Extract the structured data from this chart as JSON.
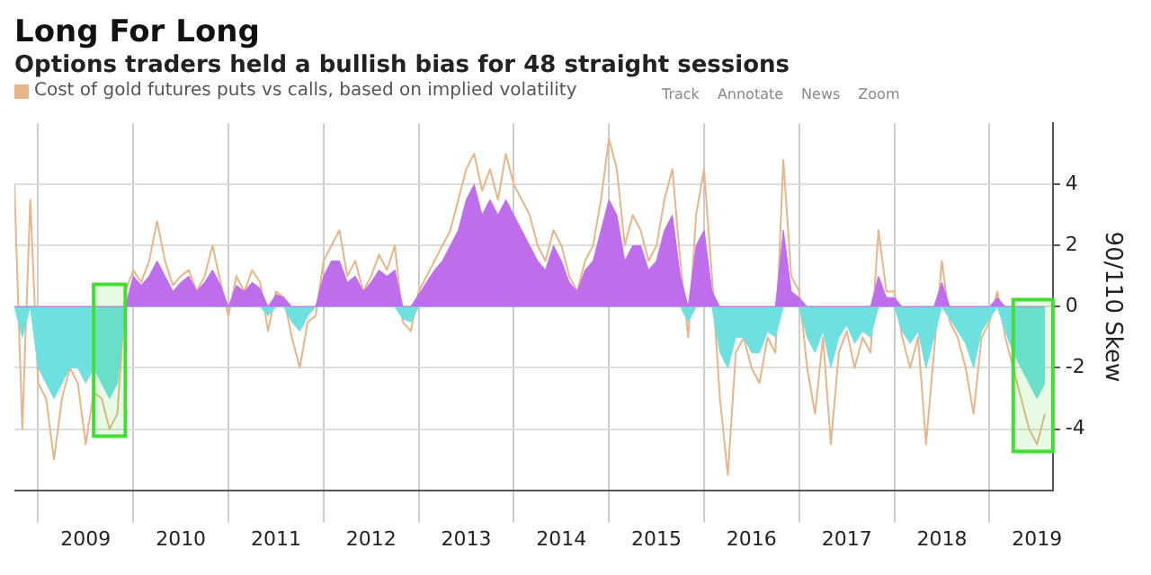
{
  "chart_data": {
    "type": "line",
    "title": "Long For Long",
    "subtitle": "Options traders held a bullish bias for 48 straight sessions",
    "ylabel": "90/110 Skew",
    "annotations": [
      "Track",
      "Annotate",
      "News",
      "Zoom"
    ],
    "x": [
      "2008-10",
      "2008-11",
      "2008-12",
      "2009-01",
      "2009-02",
      "2009-03",
      "2009-04",
      "2009-05",
      "2009-06",
      "2009-07",
      "2009-08",
      "2009-09",
      "2009-10",
      "2009-11",
      "2009-12",
      "2010-01",
      "2010-02",
      "2010-03",
      "2010-04",
      "2010-05",
      "2010-06",
      "2010-07",
      "2010-08",
      "2010-09",
      "2010-10",
      "2010-11",
      "2010-12",
      "2011-01",
      "2011-02",
      "2011-03",
      "2011-04",
      "2011-05",
      "2011-06",
      "2011-07",
      "2011-08",
      "2011-09",
      "2011-10",
      "2011-11",
      "2011-12",
      "2012-01",
      "2012-02",
      "2012-03",
      "2012-04",
      "2012-05",
      "2012-06",
      "2012-07",
      "2012-08",
      "2012-09",
      "2012-10",
      "2012-11",
      "2012-12",
      "2013-01",
      "2013-02",
      "2013-03",
      "2013-04",
      "2013-05",
      "2013-06",
      "2013-07",
      "2013-08",
      "2013-09",
      "2013-10",
      "2013-11",
      "2013-12",
      "2014-01",
      "2014-02",
      "2014-03",
      "2014-04",
      "2014-05",
      "2014-06",
      "2014-07",
      "2014-08",
      "2014-09",
      "2014-10",
      "2014-11",
      "2014-12",
      "2015-01",
      "2015-02",
      "2015-03",
      "2015-04",
      "2015-05",
      "2015-06",
      "2015-07",
      "2015-08",
      "2015-09",
      "2015-10",
      "2015-11",
      "2015-12",
      "2016-01",
      "2016-02",
      "2016-03",
      "2016-04",
      "2016-05",
      "2016-06",
      "2016-07",
      "2016-08",
      "2016-09",
      "2016-10",
      "2016-11",
      "2016-12",
      "2017-01",
      "2017-02",
      "2017-03",
      "2017-04",
      "2017-05",
      "2017-06",
      "2017-07",
      "2017-08",
      "2017-09",
      "2017-10",
      "2017-11",
      "2017-12",
      "2018-01",
      "2018-02",
      "2018-03",
      "2018-04",
      "2018-05",
      "2018-06",
      "2018-07",
      "2018-08",
      "2018-09",
      "2018-10",
      "2018-11",
      "2018-12",
      "2019-01",
      "2019-02",
      "2019-03",
      "2019-04",
      "2019-05",
      "2019-06",
      "2019-07",
      "2019-08"
    ],
    "series": [
      {
        "name": "Cost of gold futures puts vs calls, based on implied volatility",
        "color": "#e8b48a",
        "values": [
          4,
          -4,
          3.5,
          -2.5,
          -3,
          -5,
          -3,
          -2,
          -2.5,
          -4.5,
          -2.8,
          -3,
          -4,
          -3.5,
          0.5,
          1.2,
          0.8,
          1.5,
          2.8,
          1.5,
          0.7,
          1,
          1.2,
          0.5,
          1,
          2,
          0.8,
          -0.3,
          1,
          0.5,
          1.2,
          0.8,
          -0.8,
          0.5,
          0.3,
          -1,
          -2,
          -0.5,
          -0.3,
          1.5,
          2,
          2.5,
          1,
          1.5,
          0.5,
          1,
          1.7,
          1.2,
          2,
          -0.5,
          -0.8,
          0.5,
          1,
          1.5,
          2,
          2.5,
          3.5,
          4.5,
          5,
          3.8,
          4.5,
          3.5,
          5,
          4,
          3.5,
          3,
          2,
          1.5,
          2.5,
          2,
          1,
          0.5,
          1.5,
          2,
          3.5,
          5.5,
          4.5,
          2,
          3,
          2.5,
          1.5,
          2,
          3.5,
          4.5,
          1.5,
          -1,
          3,
          4.5,
          1,
          -3,
          -5.5,
          -1.5,
          -1,
          -2,
          -2.5,
          -1,
          -1.5,
          4.8,
          1,
          0.5,
          -2,
          -3.5,
          -1,
          -4.5,
          -1.5,
          -0.8,
          -2,
          -1,
          -1.5,
          2.5,
          0.5,
          0.5,
          -1,
          -2,
          -1,
          -4.5,
          -1.5,
          1.5,
          -0.5,
          -1,
          -2,
          -3.5,
          -1,
          -0.5,
          0.5,
          -1,
          -2,
          -3,
          -4,
          -4.5,
          -3.5
        ]
      },
      {
        "type": "area",
        "color": "#be6eeb",
        "values": [
          0,
          0,
          0,
          0,
          0,
          0,
          0,
          0,
          0,
          0,
          0,
          0,
          0,
          0,
          0,
          1,
          0.7,
          1,
          1.5,
          1,
          0.5,
          0.8,
          1,
          0.5,
          0.8,
          1.2,
          0.7,
          0,
          0.7,
          0.5,
          0.8,
          0.6,
          0,
          0.4,
          0.3,
          0,
          0,
          0,
          0,
          1,
          1.5,
          1.5,
          0.8,
          1,
          0.5,
          0.8,
          1.2,
          1,
          1.2,
          0,
          0,
          0.4,
          0.8,
          1.2,
          1.5,
          2,
          2.5,
          3.5,
          4,
          3,
          3.5,
          3,
          3.5,
          3,
          2.5,
          2,
          1.5,
          1.2,
          2,
          1.5,
          0.8,
          0.5,
          1.2,
          1.5,
          2.5,
          3.5,
          3,
          1.5,
          2,
          2,
          1.2,
          1.5,
          2.5,
          3,
          1,
          0,
          2,
          2.5,
          0.5,
          0,
          0,
          0,
          0,
          0,
          0,
          0,
          0,
          2.5,
          0.5,
          0.3,
          0,
          0,
          0,
          0,
          0,
          0,
          0,
          0,
          0,
          1,
          0.3,
          0.3,
          0,
          0,
          0,
          0,
          0,
          0.8,
          0,
          0,
          0,
          0,
          0,
          0,
          0.3,
          0,
          0,
          0,
          0,
          0,
          0
        ]
      },
      {
        "type": "area",
        "color": "#6fe0e0",
        "values": [
          0,
          -1,
          0,
          -2,
          -2.5,
          -3,
          -2.5,
          -2,
          -2,
          -2.5,
          -2,
          -2.5,
          -3,
          -2.5,
          0,
          0,
          0,
          0,
          0,
          0,
          0,
          0,
          0,
          0,
          0,
          0,
          0,
          0,
          0,
          0,
          0,
          0,
          -0.3,
          0,
          0,
          -0.5,
          -0.8,
          -0.3,
          0,
          0,
          0,
          0,
          0,
          0,
          0,
          0,
          0,
          0,
          0,
          -0.4,
          -0.5,
          0,
          0,
          0,
          0,
          0,
          0,
          0,
          0,
          0,
          0,
          0,
          0,
          0,
          0,
          0,
          0,
          0,
          0,
          0,
          0,
          0,
          0,
          0,
          0,
          0,
          0,
          0,
          0,
          0,
          0,
          0,
          0,
          0,
          0,
          -0.5,
          0,
          0,
          0,
          -1.5,
          -2,
          -1,
          -1,
          -1.5,
          -1.5,
          -0.8,
          -1,
          0,
          0,
          0,
          -1,
          -1.5,
          -0.8,
          -2,
          -1,
          -0.6,
          -1.2,
          -0.8,
          -1,
          0,
          0,
          0,
          -0.8,
          -1.2,
          -0.8,
          -2,
          -1,
          0,
          -0.4,
          -0.8,
          -1.2,
          -2,
          -0.8,
          -0.4,
          0,
          -0.8,
          -1.5,
          -2,
          -2.5,
          -3,
          -2.5
        ]
      }
    ],
    "xlim": [
      "2008-10",
      "2019-09"
    ],
    "xticks": [
      {
        "value": "2009",
        "label": null
      },
      {
        "value": "2009-07",
        "label": "2009"
      },
      {
        "value": "2010",
        "label": null
      },
      {
        "value": "2010-07",
        "label": "2010"
      },
      {
        "value": "2011",
        "label": null
      },
      {
        "value": "2011-07",
        "label": "2011"
      },
      {
        "value": "2012",
        "label": null
      },
      {
        "value": "2012-07",
        "label": "2012"
      },
      {
        "value": "2013",
        "label": null
      },
      {
        "value": "2013-07",
        "label": "2013"
      },
      {
        "value": "2014",
        "label": null
      },
      {
        "value": "2014-07",
        "label": "2014"
      },
      {
        "value": "2015",
        "label": null
      },
      {
        "value": "2015-07",
        "label": "2015"
      },
      {
        "value": "2016",
        "label": null
      },
      {
        "value": "2016-07",
        "label": "2016"
      },
      {
        "value": "2017",
        "label": null
      },
      {
        "value": "2017-07",
        "label": "2017"
      },
      {
        "value": "2018",
        "label": null
      },
      {
        "value": "2018-07",
        "label": "2018"
      },
      {
        "value": "2019",
        "label": null
      },
      {
        "value": "2019-07",
        "label": "2019"
      }
    ],
    "ylim": [
      -6,
      6
    ],
    "yticks": [
      -4,
      -2,
      0,
      2,
      4
    ],
    "bands": [
      {
        "axis": "x",
        "from": "2009-08",
        "to": "2009-12",
        "color": "#44dd33"
      },
      {
        "axis": "x",
        "from": "2019-04",
        "to": "2019-09",
        "color": "#44dd33"
      }
    ],
    "grid": true,
    "legend": "top left"
  }
}
